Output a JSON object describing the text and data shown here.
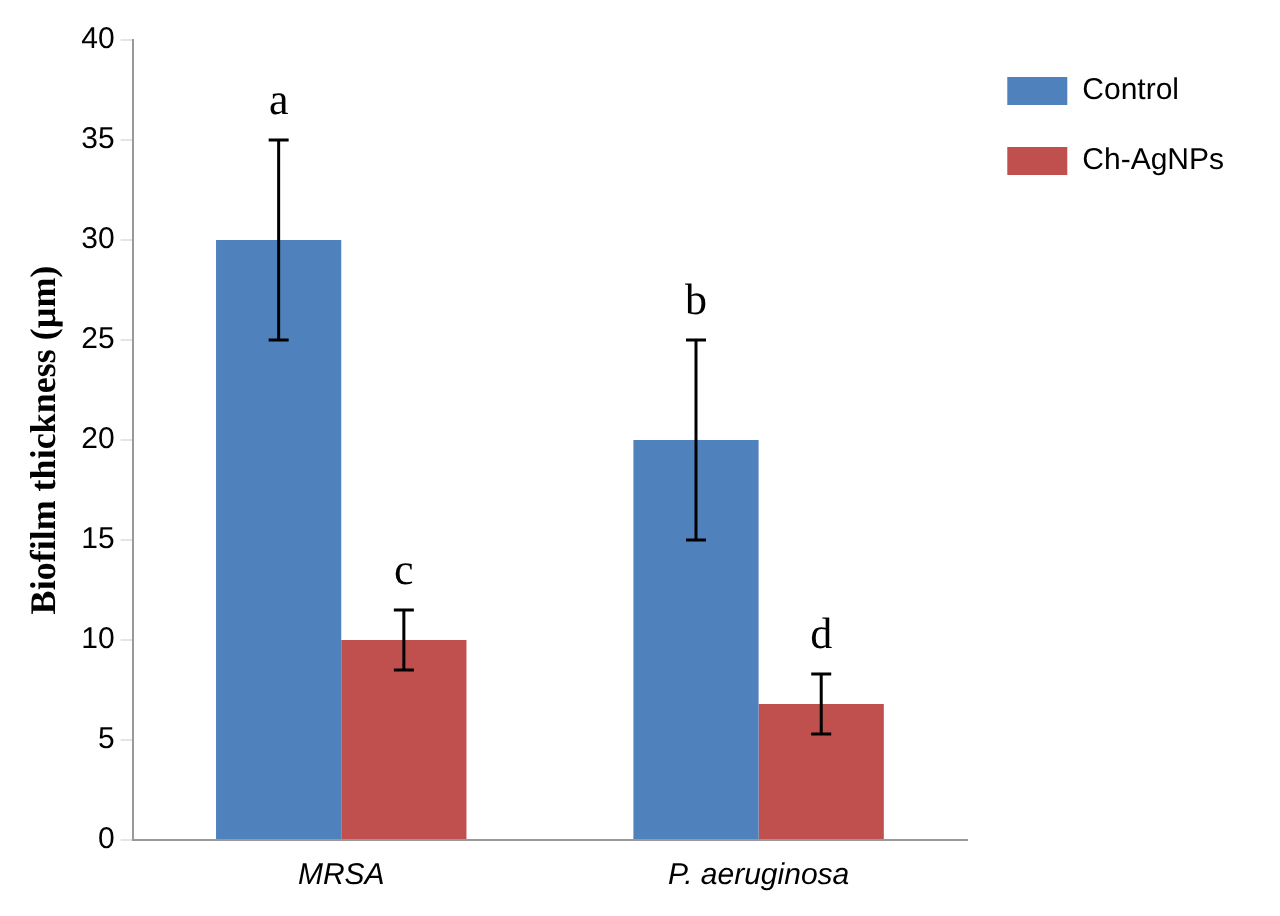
{
  "chart_data": {
    "type": "bar",
    "ylabel": "Biofilm thickness (µm)",
    "categories": [
      "MRSA",
      "P. aeruginosa"
    ],
    "series": [
      {
        "name": "Control",
        "color": "#4f81bd",
        "values": [
          30,
          20
        ],
        "errors": [
          5,
          5
        ]
      },
      {
        "name": "Ch-AgNPs",
        "color": "#c0504d",
        "values": [
          10,
          6.8
        ],
        "errors": [
          1.5,
          1.5
        ]
      }
    ],
    "ylim": [
      0,
      40
    ],
    "yticks": [
      0,
      5,
      10,
      15,
      20,
      25,
      30,
      35,
      40
    ],
    "grid": false,
    "legend": "top right",
    "annotations": [
      {
        "text": "a",
        "x": "MRSA",
        "y": 30
      },
      {
        "text": "c",
        "x": "MRSA",
        "y": 10
      },
      {
        "text": "b",
        "x": "P. aeruginosa",
        "y": 20
      },
      {
        "text": "d",
        "x": "P. aeruginosa",
        "y": 6.8
      }
    ]
  }
}
